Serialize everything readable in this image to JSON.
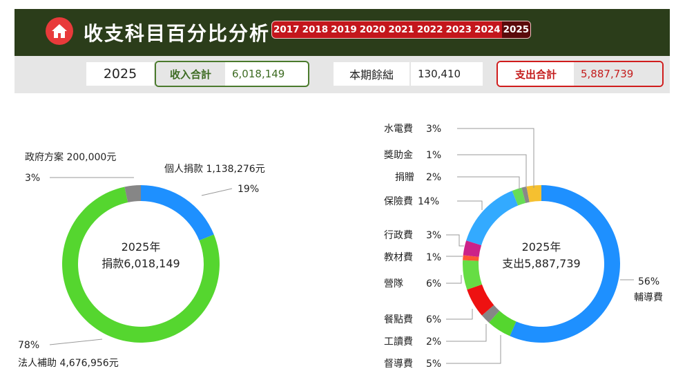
{
  "header": {
    "title": "收支科目百分比分析",
    "years": [
      "2017",
      "2018",
      "2019",
      "2020",
      "2021",
      "2022",
      "2023",
      "2024",
      "2025"
    ],
    "active_year": "2025",
    "bg_color": "#2b3d1a"
  },
  "summary": {
    "year": "2025",
    "income_label": "收入合計",
    "income_value": "6,018,149",
    "balance_label": "本期餘絀",
    "balance_value": "130,410",
    "expense_label": "支出合計",
    "expense_value": "5,887,739"
  },
  "chart_data": [
    {
      "type": "pie",
      "donut": true,
      "title": "",
      "center_line1": "2025年",
      "center_line2": "捐款6,018,149",
      "slices": [
        {
          "label": "個人捐款 1,138,276元",
          "pct_label": "19%",
          "value": 1138276,
          "color": "#1e90ff"
        },
        {
          "label": "法人補助 4,676,956元",
          "pct_label": "78%",
          "value": 4676956,
          "color": "#55d62f"
        },
        {
          "label": "政府方案 200,000元",
          "pct_label": "3%",
          "value": 200000,
          "color": "#868686"
        }
      ]
    },
    {
      "type": "pie",
      "donut": true,
      "title": "",
      "center_line1": "2025年",
      "center_line2": "支出5,887,739",
      "slices": [
        {
          "label": "輔導費",
          "pct_label": "56%",
          "value": 56,
          "color": "#1e90ff"
        },
        {
          "label": "督導費",
          "pct_label": "5%",
          "value": 5,
          "color": "#55d62f"
        },
        {
          "label": "工讀費",
          "pct_label": "2%",
          "value": 2,
          "color": "#868686"
        },
        {
          "label": "餐點費",
          "pct_label": "6%",
          "value": 6,
          "color": "#ee1111"
        },
        {
          "label": "營隊",
          "pct_label": "6%",
          "value": 6,
          "color": "#66dd44"
        },
        {
          "label": "教材費",
          "pct_label": "1%",
          "value": 1,
          "color": "#ff5533"
        },
        {
          "label": "行政費",
          "pct_label": "3%",
          "value": 3,
          "color": "#cc2288"
        },
        {
          "label": "保險費",
          "pct_label": "14%",
          "value": 14,
          "color": "#33aaff"
        },
        {
          "label": "捐贈",
          "pct_label": "2%",
          "value": 2,
          "color": "#66dd55"
        },
        {
          "label": "獎助金",
          "pct_label": "1%",
          "value": 1,
          "color": "#888888"
        },
        {
          "label": "水電費",
          "pct_label": "3%",
          "value": 3,
          "color": "#f5c030"
        }
      ]
    }
  ]
}
